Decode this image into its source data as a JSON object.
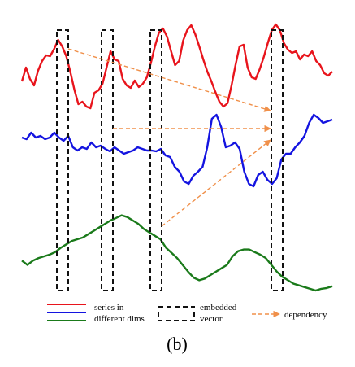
{
  "legend": {
    "series_label_line1": "series in",
    "series_label_line2": "different dims",
    "vector_label_line1": "embedded",
    "vector_label_line2": "vector",
    "dependency_label": "dependency"
  },
  "caption": "(b)",
  "colors": {
    "series_red": "#e8141c",
    "series_blue": "#1414e0",
    "series_green": "#1a7a1a",
    "box": "#111111",
    "dependency": "#f0904a"
  },
  "series": [
    {
      "color_key": "series_red",
      "values": [
        0.35,
        0.52,
        0.38,
        0.3,
        0.48,
        0.6,
        0.67,
        0.66,
        0.75,
        0.86,
        0.78,
        0.66,
        0.47,
        0.25,
        0.07,
        0.1,
        0.04,
        0.02,
        0.21,
        0.24,
        0.32,
        0.52,
        0.72,
        0.62,
        0.6,
        0.38,
        0.3,
        0.27,
        0.36,
        0.28,
        0.32,
        0.4,
        0.58,
        0.78,
        0.95,
        1.0,
        0.9,
        0.72,
        0.55,
        0.6,
        0.85,
        0.98,
        1.04,
        0.93,
        0.78,
        0.62,
        0.47,
        0.35,
        0.22,
        0.1,
        0.04,
        0.08,
        0.3,
        0.55,
        0.78,
        0.8,
        0.52,
        0.4,
        0.38,
        0.5,
        0.65,
        0.82,
        0.98,
        1.05,
        0.98,
        0.82,
        0.74,
        0.7,
        0.72,
        0.62,
        0.68,
        0.66,
        0.72,
        0.6,
        0.55,
        0.45,
        0.42,
        0.47
      ]
    },
    {
      "color_key": "series_blue",
      "values": [
        0.72,
        0.7,
        0.78,
        0.72,
        0.74,
        0.7,
        0.72,
        0.78,
        0.72,
        0.68,
        0.74,
        0.6,
        0.56,
        0.6,
        0.58,
        0.66,
        0.6,
        0.62,
        0.58,
        0.55,
        0.6,
        0.56,
        0.52,
        0.54,
        0.56,
        0.6,
        0.58,
        0.56,
        0.56,
        0.55,
        0.58,
        0.5,
        0.48,
        0.36,
        0.3,
        0.18,
        0.15,
        0.25,
        0.3,
        0.36,
        0.6,
        0.95,
        1.0,
        0.85,
        0.6,
        0.62,
        0.66,
        0.58,
        0.3,
        0.15,
        0.12,
        0.26,
        0.3,
        0.2,
        0.15,
        0.22,
        0.45,
        0.52,
        0.52,
        0.6,
        0.66,
        0.74,
        0.9,
        1.0,
        0.96,
        0.9,
        0.92,
        0.94
      ]
    },
    {
      "color_key": "series_green",
      "values": [
        0.35,
        0.3,
        0.35,
        0.38,
        0.4,
        0.42,
        0.45,
        0.5,
        0.54,
        0.58,
        0.6,
        0.62,
        0.66,
        0.7,
        0.74,
        0.78,
        0.82,
        0.85,
        0.88,
        0.86,
        0.82,
        0.78,
        0.72,
        0.68,
        0.64,
        0.6,
        0.5,
        0.44,
        0.38,
        0.3,
        0.22,
        0.15,
        0.12,
        0.14,
        0.18,
        0.22,
        0.26,
        0.3,
        0.4,
        0.46,
        0.48,
        0.48,
        0.45,
        0.42,
        0.38,
        0.3,
        0.22,
        0.16,
        0.12,
        0.08,
        0.06,
        0.04,
        0.02,
        0.0,
        0.02,
        0.03,
        0.05
      ]
    }
  ],
  "embedded_vectors": [
    {
      "id": "vector-1"
    },
    {
      "id": "vector-2"
    },
    {
      "id": "vector-3"
    },
    {
      "id": "vector-4"
    }
  ],
  "dependencies": [
    {
      "from": "vector-1",
      "to": "vector-4",
      "row": "red-to-red"
    },
    {
      "from": "vector-2",
      "to": "vector-4",
      "row": "blue-to-blue"
    },
    {
      "from": "vector-3",
      "to": "vector-4",
      "row": "green-to-blue"
    }
  ]
}
